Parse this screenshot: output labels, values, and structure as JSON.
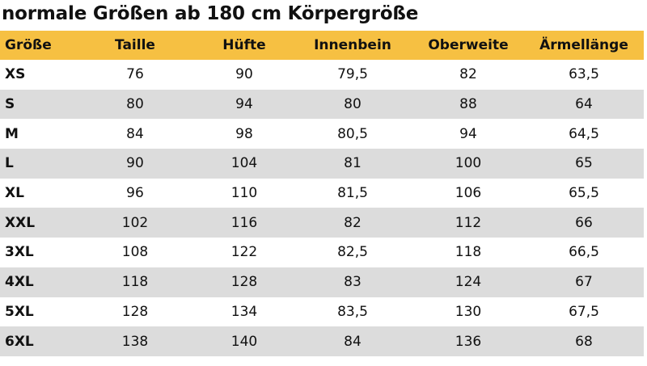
{
  "title": "normale Größen ab 180 cm Körpergröße",
  "colors": {
    "header_bg": "#f6c042",
    "row_stripe": "#dcdcdc",
    "row_plain": "#ffffff",
    "text": "#111111"
  },
  "table": {
    "headers": [
      "Größe",
      "Taille",
      "Hüfte",
      "Innenbein",
      "Oberweite",
      "Ärmellänge"
    ],
    "rows": [
      [
        "XS",
        "76",
        "90",
        "79,5",
        "82",
        "63,5"
      ],
      [
        "S",
        "80",
        "94",
        "80",
        "88",
        "64"
      ],
      [
        "M",
        "84",
        "98",
        "80,5",
        "94",
        "64,5"
      ],
      [
        "L",
        "90",
        "104",
        "81",
        "100",
        "65"
      ],
      [
        "XL",
        "96",
        "110",
        "81,5",
        "106",
        "65,5"
      ],
      [
        "XXL",
        "102",
        "116",
        "82",
        "112",
        "66"
      ],
      [
        "3XL",
        "108",
        "122",
        "82,5",
        "118",
        "66,5"
      ],
      [
        "4XL",
        "118",
        "128",
        "83",
        "124",
        "67"
      ],
      [
        "5XL",
        "128",
        "134",
        "83,5",
        "130",
        "67,5"
      ],
      [
        "6XL",
        "138",
        "140",
        "84",
        "136",
        "68"
      ]
    ]
  }
}
